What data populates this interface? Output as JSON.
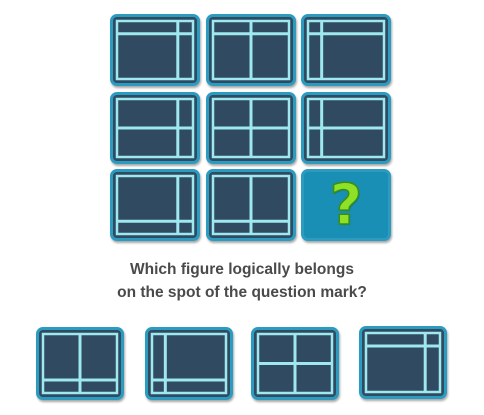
{
  "question": {
    "line1": "Which figure logically belongs",
    "line2": "on the spot of the question mark?"
  },
  "question_mark": "?",
  "colors": {
    "tile_fill": "#2f4a61",
    "tile_border": "#2b9bc0",
    "grid_line": "#9ee8ee",
    "question_tile_fill": "#1a8fb5",
    "question_mark": "#8ee028",
    "question_text": "#4a4a4a"
  },
  "puzzle_grid": [
    {
      "row": 1,
      "col": 1,
      "vertical_line": "right",
      "horizontal_line": "top"
    },
    {
      "row": 1,
      "col": 2,
      "vertical_line": "center",
      "horizontal_line": "top"
    },
    {
      "row": 1,
      "col": 3,
      "vertical_line": "left",
      "horizontal_line": "top"
    },
    {
      "row": 2,
      "col": 1,
      "vertical_line": "right",
      "horizontal_line": "center"
    },
    {
      "row": 2,
      "col": 2,
      "vertical_line": "center",
      "horizontal_line": "center"
    },
    {
      "row": 2,
      "col": 3,
      "vertical_line": "left",
      "horizontal_line": "center"
    },
    {
      "row": 3,
      "col": 1,
      "vertical_line": "right",
      "horizontal_line": "bottom"
    },
    {
      "row": 3,
      "col": 2,
      "vertical_line": "center",
      "horizontal_line": "bottom"
    },
    {
      "row": 3,
      "col": 3,
      "missing": true
    }
  ],
  "answer_options": [
    {
      "option": 1,
      "vertical_line": "center",
      "horizontal_line": "bottom"
    },
    {
      "option": 2,
      "vertical_line": "left",
      "horizontal_line": "bottom"
    },
    {
      "option": 3,
      "vertical_line": "center",
      "horizontal_line": "center"
    },
    {
      "option": 4,
      "vertical_line": "right",
      "horizontal_line": "top"
    }
  ]
}
